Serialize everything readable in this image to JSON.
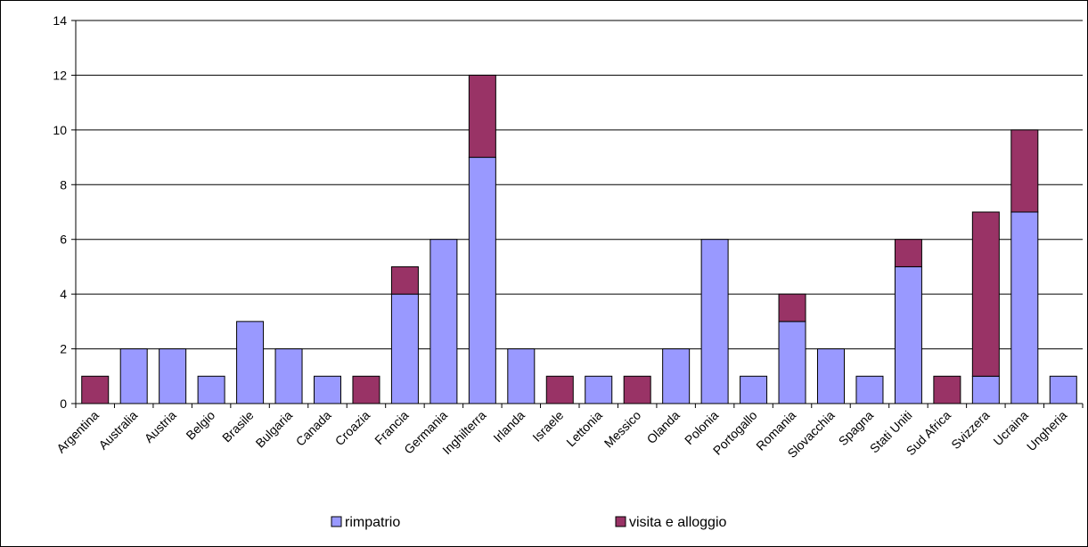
{
  "chart_data": {
    "type": "bar",
    "stacked": true,
    "title": "",
    "xlabel": "",
    "ylabel": "",
    "ylim": [
      0,
      14
    ],
    "yticks": [
      0,
      2,
      4,
      6,
      8,
      10,
      12,
      14
    ],
    "grid": true,
    "legend_position": "bottom",
    "categories": [
      "Argentina",
      "Australia",
      "Austria",
      "Belgio",
      "Brasile",
      "Bulgaria",
      "Canada",
      "Croazia",
      "Francia",
      "Germania",
      "Inghilterra",
      "Irlanda",
      "Israele",
      "Lettonia",
      "Messico",
      "Olanda",
      "Polonia",
      "Portogallo",
      "Romania",
      "Slovacchia",
      "Spagna",
      "Stati Uniti",
      "Sud Africa",
      "Svizzera",
      "Ucraina",
      "Ungheria"
    ],
    "series": [
      {
        "name": "rimpatrio",
        "color": "#9999ff",
        "values": [
          0,
          2,
          2,
          1,
          3,
          2,
          1,
          0,
          4,
          6,
          9,
          2,
          0,
          1,
          0,
          2,
          6,
          1,
          3,
          2,
          1,
          5,
          0,
          1,
          7,
          1
        ]
      },
      {
        "name": "visita e alloggio",
        "color": "#993366",
        "values": [
          1,
          0,
          0,
          0,
          0,
          0,
          0,
          1,
          1,
          0,
          3,
          0,
          1,
          0,
          1,
          0,
          0,
          0,
          1,
          0,
          0,
          1,
          1,
          6,
          3,
          0
        ]
      }
    ]
  }
}
